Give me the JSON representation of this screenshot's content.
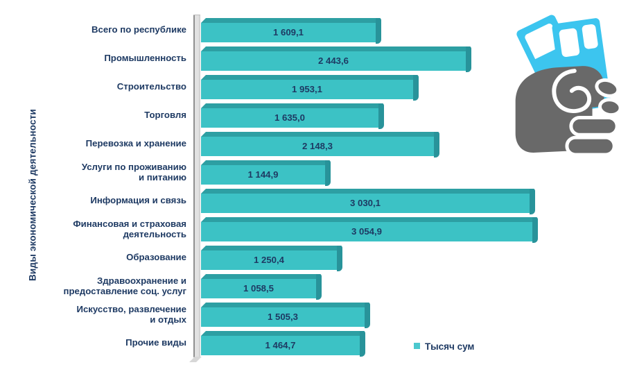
{
  "chart_data": {
    "type": "bar",
    "orientation": "horizontal",
    "ylabel": "Виды экономической деятельности",
    "xlabel": "",
    "xlim": [
      0,
      3100
    ],
    "grid": false,
    "legend": {
      "position": "bottom",
      "items": [
        {
          "label": "Тысяч сум",
          "color": "#4cc8ce"
        }
      ]
    },
    "categories": [
      "Всего по республике",
      "Промышленность",
      "Строительство",
      "Торговля",
      "Перевозка и хранение",
      "Услуги по проживанию\nи питанию",
      "Информация и связь",
      "Финансовая и страховая\nдеятельность",
      "Образование",
      "Здравоохранение и\nпредоставление соц. услуг",
      "Искусство, развлечение\nи отдых",
      "Прочие виды"
    ],
    "values": [
      1609.1,
      2443.6,
      1953.1,
      1635.0,
      2148.3,
      1144.9,
      3030.1,
      3054.9,
      1250.4,
      1058.5,
      1505.3,
      1464.7
    ],
    "value_labels": [
      "1 609,1",
      "2 443,6",
      "1 953,1",
      "1 635,0",
      "2 148,3",
      "1 144,9",
      "3 030,1",
      "3 054,9",
      "1 250,4",
      "1 058,5",
      "1 505,3",
      "1 464,7"
    ],
    "colors": {
      "bar_front": "#3cc2c5",
      "bar_top": "#2d9fa3",
      "bar_end": "#28939a",
      "text": "#1e3a63",
      "wall_face": "#e2e2e2",
      "wall_edge": "#8f8f8f"
    }
  },
  "icon": {
    "name": "fist-holding-banknotes",
    "banknote_color": "#3cc5ef",
    "hand_color": "#696969"
  }
}
